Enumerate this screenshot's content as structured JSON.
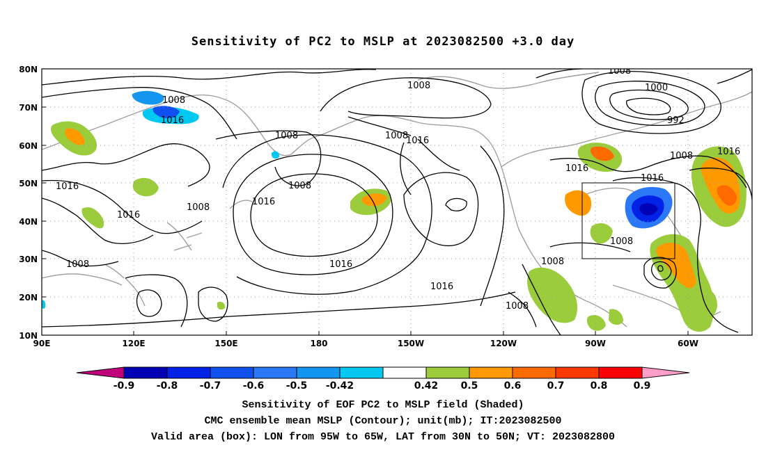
{
  "title": "Sensitivity of PC2 to MSLP at 2023082500 +3.0 day",
  "map": {
    "lat_ticks": [
      "80N",
      "70N",
      "60N",
      "50N",
      "40N",
      "30N",
      "20N",
      "10N"
    ],
    "lon_ticks": [
      "90E",
      "120E",
      "150E",
      "180",
      "150W",
      "120W",
      "90W",
      "60W"
    ],
    "contour_labels": [
      "1008",
      "1016",
      "1000",
      "992"
    ],
    "gridlines": "dotted",
    "valid_box": {
      "lon_from": "95W",
      "lon_to": "65W",
      "lat_from": "30N",
      "lat_to": "50N"
    }
  },
  "colorbar": {
    "labels": [
      "-0.9",
      "-0.8",
      "-0.7",
      "-0.6",
      "-0.5",
      "-0.42",
      "0.42",
      "0.5",
      "0.6",
      "0.7",
      "0.8",
      "0.9"
    ],
    "colors": [
      "#c0007a",
      "#0000b4",
      "#0022e6",
      "#1050f0",
      "#2a78f5",
      "#1496f0",
      "#00c8f0",
      "#ffffff",
      "#9bcc3c",
      "#ff9900",
      "#ff6a00",
      "#ff3a00",
      "#ff0000",
      "#ff9ec8"
    ]
  },
  "captions": {
    "line1": "Sensitivity of EOF PC2 to MSLP field (Shaded)",
    "line2": "CMC ensemble mean MSLP (Contour); unit(mb); IT:2023082500",
    "line3": "Valid area (box): LON from 95W to 65W, LAT from 30N to 50N; VT: 2023082800"
  }
}
